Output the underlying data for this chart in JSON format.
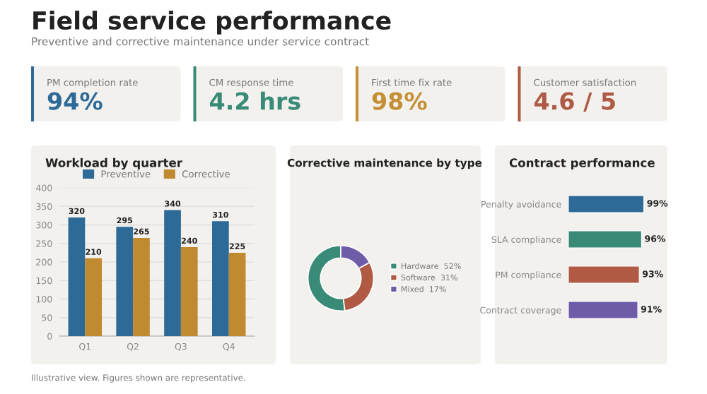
{
  "chart_data": [
    {
      "type": "other",
      "title": "Field service performance",
      "subtitle": "Preventive and corrective maintenance under service contract",
      "categories": [
        "PM completion rate",
        "CM response time",
        "First time fix rate",
        "Customer satisfaction"
      ],
      "value_labels": [
        "94%",
        "4.2 hrs",
        "98%",
        "4.6 / 5"
      ],
      "colors": [
        "#2e6a98",
        "#3a8a78",
        "#c48f35",
        "#ae5a45"
      ],
      "annotations": [
        "Illustrative view. Figures shown are representative."
      ]
    },
    {
      "type": "bar",
      "title": "Workload by quarter",
      "categories": [
        "Q1",
        "Q2",
        "Q3",
        "Q4"
      ],
      "series": [
        {
          "name": "Preventive",
          "color": "#2e6a98",
          "values": [
            320,
            295,
            340,
            310
          ]
        },
        {
          "name": "Corrective",
          "color": "#c08a30",
          "values": [
            210,
            265,
            240,
            225
          ]
        }
      ],
      "ylim": [
        0,
        400
      ],
      "yticks": [
        0,
        50,
        100,
        150,
        200,
        250,
        300,
        350,
        400
      ],
      "grid": "y",
      "legend": "top",
      "data_labels": true
    },
    {
      "type": "donut",
      "title": "Corrective maintenance by type",
      "categories": [
        "Hardware",
        "Software",
        "Mixed"
      ],
      "values": [
        52,
        31,
        17
      ],
      "value_labels": [
        "52%",
        "31%",
        "17%"
      ],
      "colors": [
        "#3a8a78",
        "#b05a44",
        "#6e5ca8"
      ],
      "legend": "right"
    },
    {
      "type": "bar",
      "orientation": "horizontal",
      "title": "Contract performance",
      "categories": [
        "Penalty avoidance",
        "SLA compliance",
        "PM compliance",
        "Contract coverage"
      ],
      "values": [
        99,
        96,
        93,
        91
      ],
      "value_labels": [
        "99%",
        "96%",
        "93%",
        "91%"
      ],
      "colors": [
        "#2e6a98",
        "#3a8a78",
        "#b05a44",
        "#6e5ca8"
      ],
      "tick_labels": "y"
    }
  ]
}
